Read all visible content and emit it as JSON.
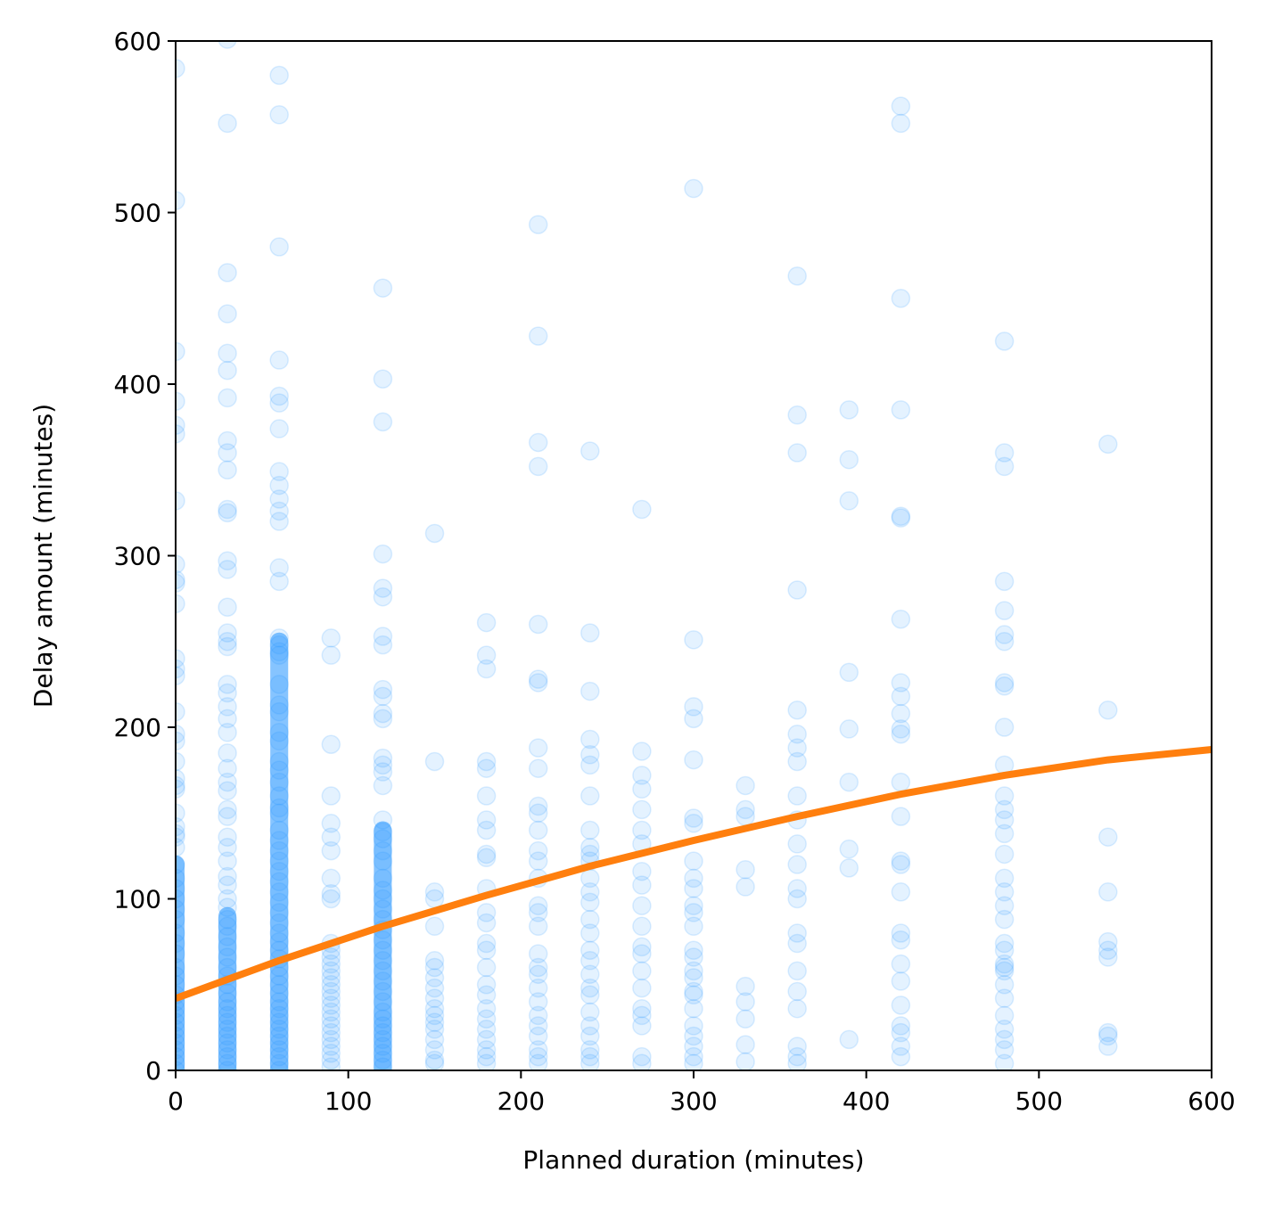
{
  "chart_data": {
    "type": "scatter",
    "xlabel": "Planned duration (minutes)",
    "ylabel": "Delay amount (minutes)",
    "xlim": [
      0,
      600
    ],
    "ylim": [
      0,
      600
    ],
    "xticks": [
      "0",
      "100",
      "200",
      "300",
      "400",
      "500",
      "600"
    ],
    "yticks": [
      "0",
      "100",
      "200",
      "300",
      "400",
      "500",
      "600"
    ],
    "grid": false,
    "point_color": "#1E90FF",
    "point_opacity": 0.12,
    "trend_color": "#FF7F0E",
    "scatter_columns": [
      {
        "x": 0,
        "y": [
          584,
          507,
          419,
          390,
          376,
          371,
          332,
          295,
          286,
          284,
          272,
          240,
          234,
          230,
          209,
          196,
          192,
          180,
          170,
          166,
          164,
          150,
          142,
          138,
          136,
          130,
          120,
          112,
          106,
          100,
          94,
          88,
          80,
          74,
          68,
          60,
          55,
          50,
          44,
          40,
          36,
          32,
          28,
          24,
          20,
          16,
          12,
          8,
          4,
          0
        ]
      },
      {
        "x": 30,
        "y": [
          601,
          552,
          465,
          441,
          418,
          408,
          392,
          367,
          360,
          350,
          327,
          325,
          297,
          292,
          270,
          255,
          250,
          247,
          225,
          220,
          212,
          205,
          197,
          185,
          176,
          168,
          163,
          152,
          148,
          136,
          130,
          122,
          113,
          108,
          100,
          95,
          88,
          84,
          78,
          72,
          66,
          60,
          55,
          50,
          45,
          40,
          36,
          32,
          28,
          24,
          20,
          16,
          12,
          8,
          4,
          0
        ]
      },
      {
        "x": 60,
        "y": [
          580,
          557,
          480,
          414,
          393,
          389,
          374,
          349,
          341,
          333,
          326,
          320,
          293,
          285,
          252,
          248,
          244,
          242,
          225,
          213,
          209,
          197,
          192,
          180,
          175,
          168,
          160,
          153,
          150,
          140,
          134,
          128,
          122,
          116,
          110,
          104,
          98,
          92,
          86,
          80,
          75,
          70,
          65,
          60,
          55,
          50,
          45,
          40,
          36,
          32,
          28,
          24,
          20,
          16,
          12,
          8,
          4,
          0
        ]
      },
      {
        "x": 90,
        "y": [
          252,
          242,
          190,
          160,
          144,
          136,
          128,
          112,
          103,
          100,
          74,
          70,
          66,
          62,
          58,
          54,
          50,
          46,
          42,
          38,
          34,
          30,
          26,
          22,
          18,
          14,
          10,
          6,
          2
        ]
      },
      {
        "x": 120,
        "y": [
          456,
          403,
          378,
          301,
          281,
          276,
          253,
          248,
          222,
          218,
          208,
          205,
          182,
          178,
          174,
          166,
          146,
          139,
          135,
          128,
          122,
          112,
          105,
          100,
          94,
          88,
          82,
          76,
          70,
          64,
          58,
          52,
          46,
          40,
          34,
          30,
          26,
          22,
          18,
          14,
          10,
          6,
          2
        ]
      },
      {
        "x": 150,
        "y": [
          313,
          180,
          104,
          100,
          84,
          64,
          60,
          54,
          48,
          42,
          36,
          32,
          28,
          24,
          18,
          12,
          6,
          4
        ]
      },
      {
        "x": 180,
        "y": [
          261,
          242,
          234,
          180,
          176,
          160,
          146,
          140,
          126,
          124,
          106,
          92,
          86,
          74,
          70,
          60,
          50,
          44,
          36,
          30,
          24,
          18,
          12,
          8,
          4
        ]
      },
      {
        "x": 210,
        "y": [
          493,
          428,
          366,
          352,
          260,
          228,
          226,
          188,
          176,
          154,
          150,
          140,
          128,
          122,
          112,
          96,
          92,
          84,
          68,
          60,
          56,
          48,
          40,
          32,
          26,
          20,
          12,
          8,
          4
        ]
      },
      {
        "x": 240,
        "y": [
          361,
          255,
          221,
          193,
          184,
          178,
          160,
          140,
          130,
          126,
          122,
          112,
          104,
          98,
          88,
          80,
          70,
          64,
          56,
          48,
          44,
          34,
          26,
          20,
          12,
          8,
          4
        ]
      },
      {
        "x": 270,
        "y": [
          327,
          186,
          172,
          164,
          152,
          140,
          132,
          116,
          108,
          96,
          84,
          72,
          68,
          58,
          48,
          36,
          32,
          26,
          8,
          4
        ]
      },
      {
        "x": 300,
        "y": [
          514,
          251,
          212,
          205,
          181,
          147,
          144,
          122,
          112,
          106,
          96,
          92,
          84,
          70,
          66,
          58,
          54,
          46,
          44,
          36,
          26,
          20,
          14,
          8,
          4
        ]
      },
      {
        "x": 330,
        "y": [
          166,
          152,
          148,
          117,
          107,
          49,
          40,
          30,
          15,
          5
        ]
      },
      {
        "x": 360,
        "y": [
          463,
          382,
          360,
          280,
          210,
          196,
          188,
          180,
          160,
          146,
          132,
          120,
          106,
          100,
          80,
          74,
          58,
          46,
          36,
          14,
          8,
          4
        ]
      },
      {
        "x": 390,
        "y": [
          385,
          356,
          332,
          232,
          199,
          168,
          129,
          118,
          18
        ]
      },
      {
        "x": 420,
        "y": [
          562,
          552,
          450,
          385,
          323,
          322,
          263,
          226,
          218,
          208,
          199,
          196,
          168,
          148,
          122,
          120,
          104,
          80,
          76,
          62,
          52,
          38,
          26,
          22,
          14,
          8
        ]
      },
      {
        "x": 480,
        "y": [
          425,
          360,
          352,
          285,
          268,
          254,
          250,
          226,
          224,
          200,
          178,
          160,
          152,
          146,
          138,
          126,
          112,
          104,
          96,
          88,
          74,
          70,
          62,
          60,
          58,
          50,
          42,
          32,
          24,
          18,
          12,
          4
        ]
      },
      {
        "x": 540,
        "y": [
          365,
          210,
          136,
          104,
          75,
          70,
          66,
          22,
          20,
          14
        ]
      }
    ],
    "dense_columns": [
      {
        "x": 0,
        "y_min": 0,
        "y_max": 120
      },
      {
        "x": 30,
        "y_min": 0,
        "y_max": 90
      },
      {
        "x": 60,
        "y_min": 0,
        "y_max": 250
      },
      {
        "x": 120,
        "y_min": 0,
        "y_max": 140
      }
    ],
    "trend_line": {
      "x": [
        0,
        60,
        120,
        180,
        240,
        300,
        360,
        420,
        480,
        540,
        600
      ],
      "y": [
        42,
        64,
        84,
        102,
        119,
        134,
        148,
        161,
        172,
        181,
        187
      ]
    }
  }
}
